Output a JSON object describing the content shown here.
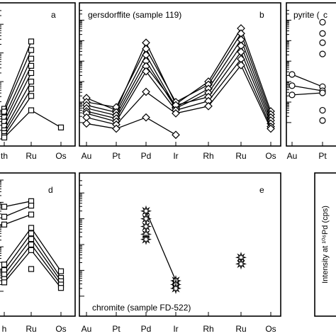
{
  "chart_data": [
    {
      "id": "a",
      "type": "line",
      "panel_letter": "a",
      "title": "",
      "categories": [
        "Th",
        "Ru",
        "Os"
      ],
      "visible_x_labels": [
        "th",
        "Ru",
        "Os"
      ],
      "marker": "square",
      "series": [
        {
          "values": [
            1.05,
            3.4,
            null
          ]
        },
        {
          "values": [
            0.95,
            3.1,
            null
          ]
        },
        {
          "values": [
            0.75,
            2.8,
            null
          ]
        },
        {
          "values": [
            0.6,
            2.55,
            null
          ]
        },
        {
          "values": [
            0.45,
            2.3,
            null
          ]
        },
        {
          "values": [
            0.3,
            2.0,
            null
          ]
        },
        {
          "values": [
            0.2,
            1.75,
            null
          ]
        },
        {
          "values": [
            0.1,
            1.5,
            null
          ]
        },
        {
          "values": [
            0.05,
            1.0,
            0.4
          ]
        }
      ],
      "ylim": [
        0,
        4.5
      ]
    },
    {
      "id": "b",
      "type": "line",
      "panel_letter": "b",
      "title": "gersdorffite (sample 119)",
      "categories": [
        "Au",
        "Pt",
        "Pd",
        "Ir",
        "Rh",
        "Ru",
        "Os"
      ],
      "marker": "diamond",
      "series": [
        {
          "values": [
            1.2,
            0.6,
            3.9,
            0.9,
            2.0,
            4.6,
            0.55
          ]
        },
        {
          "values": [
            1.0,
            0.75,
            3.6,
            1.0,
            1.85,
            4.35,
            0.4
          ]
        },
        {
          "values": [
            0.85,
            0.5,
            3.3,
            0.75,
            1.65,
            4.05,
            0.25
          ]
        },
        {
          "values": [
            0.7,
            0.35,
            3.0,
            0.7,
            1.45,
            3.75,
            0.1
          ]
        },
        {
          "values": [
            0.55,
            0.2,
            2.75,
            0.85,
            1.25,
            3.45,
            -0.05
          ]
        },
        {
          "values": [
            0.45,
            0.05,
            2.5,
            0.6,
            1.05,
            3.1,
            -0.2
          ]
        },
        {
          "values": [
            0.25,
            -0.1,
            1.5,
            0.45,
            0.8,
            2.8,
            -0.3
          ]
        },
        {
          "values": [
            -0.05,
            -0.3,
            0.25,
            -0.6,
            null,
            null,
            null
          ]
        }
      ],
      "ylim": [
        -0.8,
        5.5
      ]
    },
    {
      "id": "c",
      "type": "line",
      "panel_letter": "c",
      "title": "pyrite (",
      "categories": [
        "Au",
        "Pt"
      ],
      "marker": "circle",
      "series": [
        {
          "values": [
            null,
            4.9
          ]
        },
        {
          "values": [
            null,
            4.35
          ]
        },
        {
          "values": [
            null,
            3.9
          ]
        },
        {
          "values": [
            null,
            3.35
          ]
        },
        {
          "values": [
            2.35,
            1.75
          ]
        },
        {
          "values": [
            1.8,
            1.55
          ]
        },
        {
          "values": [
            1.35,
            1.45
          ]
        },
        {
          "values": [
            null,
            0.6
          ]
        },
        {
          "values": [
            null,
            0.1
          ]
        }
      ],
      "ylim": [
        -0.8,
        5.5
      ]
    },
    {
      "id": "d",
      "type": "line",
      "panel_letter": "d",
      "title": "",
      "categories": [
        "Th",
        "Ru",
        "Os"
      ],
      "visible_x_labels": [
        "h",
        "Ru",
        "Os"
      ],
      "marker": "square",
      "series": [
        {
          "values": [
            3.8,
            4.05,
            null
          ]
        },
        {
          "values": [
            3.35,
            3.85,
            null
          ]
        },
        {
          "values": [
            3.0,
            3.45,
            null
          ]
        },
        {
          "values": [
            1.2,
            2.85,
            0.9
          ]
        },
        {
          "values": [
            0.95,
            2.6,
            0.6
          ]
        },
        {
          "values": [
            0.75,
            2.35,
            0.45
          ]
        },
        {
          "values": [
            0.55,
            2.1,
            0.3
          ]
        },
        {
          "values": [
            0.4,
            1.85,
            0.15
          ]
        },
        {
          "values": [
            null,
            1.0,
            null
          ]
        }
      ],
      "ylim": [
        -0.8,
        5.0
      ]
    },
    {
      "id": "e",
      "type": "scatter",
      "panel_letter": "e",
      "title": "chromite (sample FD-522)",
      "categories": [
        "Au",
        "Pt",
        "Pd",
        "Ir",
        "Rh",
        "Ru",
        "Os"
      ],
      "marker": "star",
      "series": [
        {
          "values": [
            null,
            null,
            3.3,
            0.6,
            null,
            null,
            null
          ]
        },
        {
          "values": [
            null,
            null,
            3.0,
            0.45,
            null,
            null,
            null
          ]
        },
        {
          "values": [
            null,
            null,
            2.7,
            0.3,
            null,
            null,
            null
          ]
        },
        {
          "values": [
            null,
            null,
            2.4,
            null,
            null,
            1.5,
            null
          ]
        },
        {
          "values": [
            null,
            null,
            2.2,
            null,
            null,
            1.25,
            null
          ]
        }
      ],
      "ylim": [
        -0.5,
        4.5
      ]
    }
  ],
  "panel_f": {
    "ylabel": "Intensity at ¹⁰⁶Pd (cps)"
  }
}
